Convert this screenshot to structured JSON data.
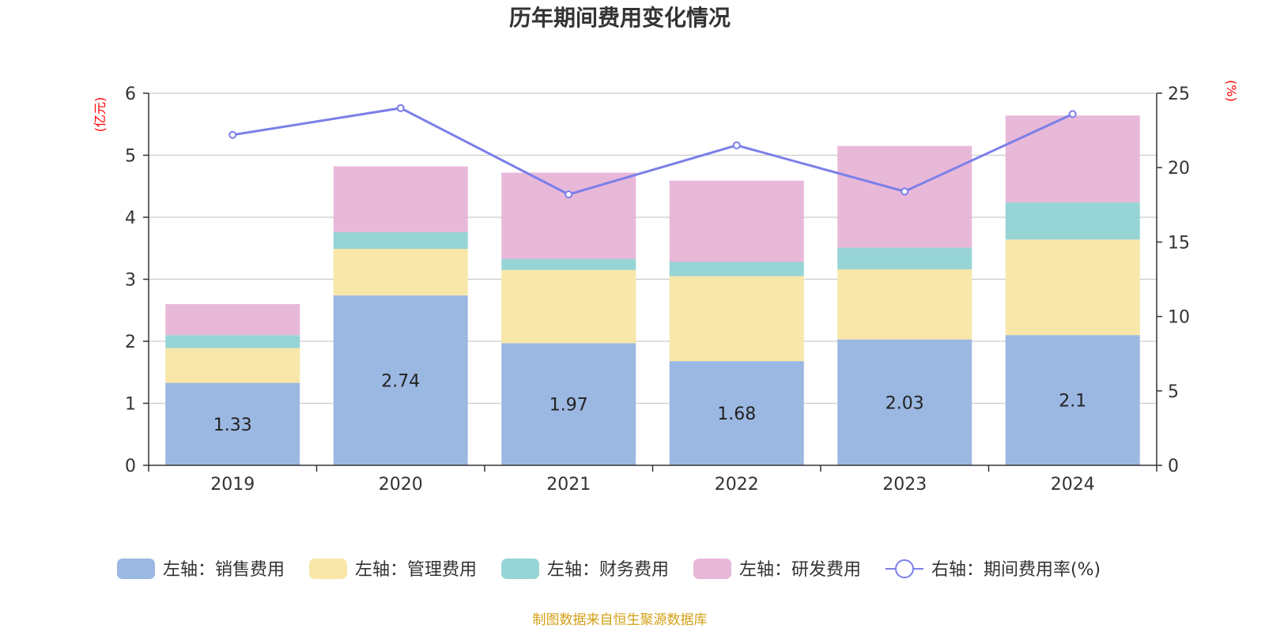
{
  "chart_data": {
    "type": "bar",
    "title": "历年期间费用变化情况",
    "categories": [
      "2019",
      "2020",
      "2021",
      "2022",
      "2023",
      "2024"
    ],
    "left_axis": {
      "unit": "(亿元)",
      "ylim": [
        0,
        6
      ],
      "ticks": [
        "0",
        "1",
        "2",
        "3",
        "4",
        "5",
        "6"
      ]
    },
    "right_axis": {
      "unit": "(%)",
      "ylim": [
        0,
        25
      ],
      "ticks": [
        "0",
        "5",
        "10",
        "15",
        "20",
        "25"
      ]
    },
    "series": [
      {
        "name": "左轴：销售费用",
        "type": "bar",
        "axis": "left",
        "color": "#9bb8e2",
        "values": [
          1.33,
          2.74,
          1.97,
          1.68,
          2.03,
          2.1
        ],
        "labels": [
          "1.33",
          "2.74",
          "1.97",
          "1.68",
          "2.03",
          "2.1"
        ]
      },
      {
        "name": "左轴：管理费用",
        "type": "bar",
        "axis": "left",
        "color": "#f8e7a8",
        "values": [
          0.56,
          0.75,
          1.18,
          1.37,
          1.13,
          1.54
        ]
      },
      {
        "name": "左轴：财务费用",
        "type": "bar",
        "axis": "left",
        "color": "#97d4d5",
        "values": [
          0.21,
          0.27,
          0.18,
          0.23,
          0.35,
          0.6
        ]
      },
      {
        "name": "左轴：研发费用",
        "type": "bar",
        "axis": "left",
        "color": "#e8b8d9",
        "values": [
          0.5,
          1.06,
          1.39,
          1.31,
          1.64,
          1.4
        ]
      },
      {
        "name": "右轴：期间费用率(%)",
        "type": "line",
        "axis": "right",
        "color": "#7b7fe8",
        "values": [
          22.2,
          24.0,
          18.2,
          21.5,
          18.4,
          23.6
        ]
      }
    ],
    "grid": true,
    "legend_position": "bottom"
  },
  "footer": {
    "source": "制图数据来自恒生聚源数据库"
  }
}
